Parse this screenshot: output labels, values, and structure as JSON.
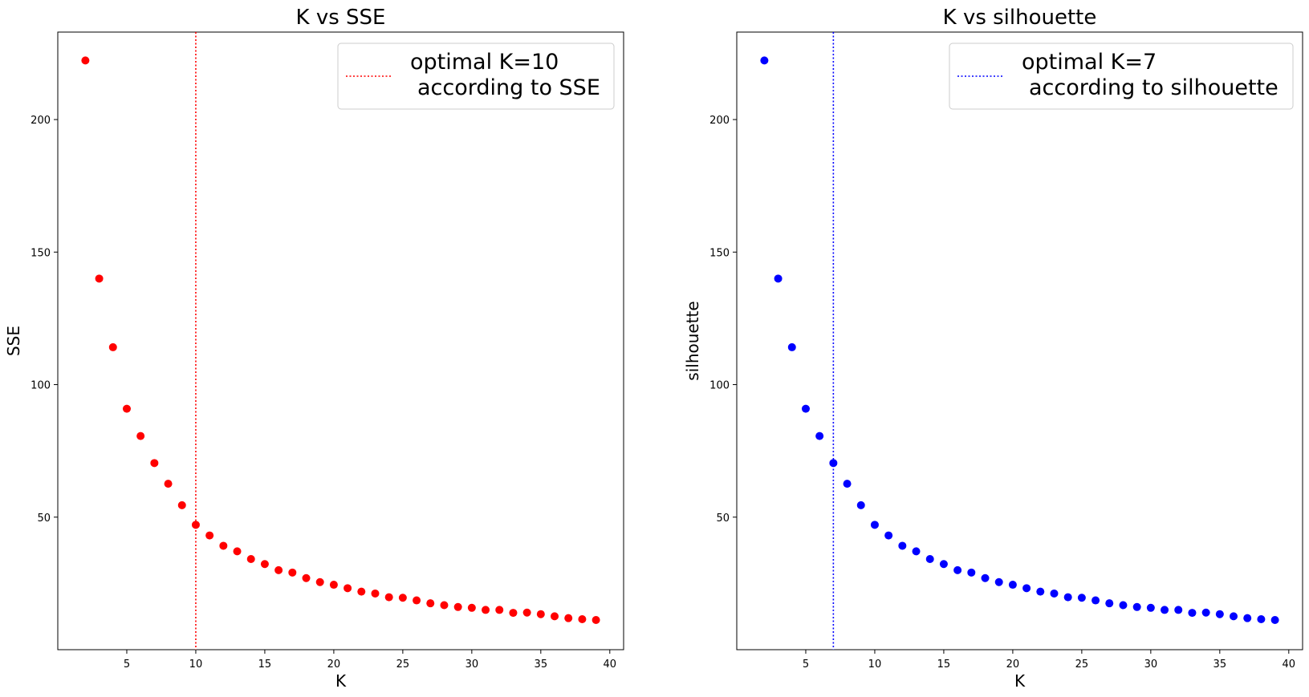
{
  "chart_data": [
    {
      "type": "scatter",
      "title": "K vs SSE",
      "xlabel": "K",
      "ylabel": "SSE",
      "xlim": [
        0,
        41
      ],
      "ylim": [
        0,
        233
      ],
      "xticks": [
        5,
        10,
        15,
        20,
        25,
        30,
        35,
        40
      ],
      "yticks": [
        50,
        100,
        150,
        200
      ],
      "color": "#ff0000",
      "x": [
        2,
        3,
        4,
        5,
        6,
        7,
        8,
        9,
        10,
        11,
        12,
        13,
        14,
        15,
        16,
        17,
        18,
        19,
        20,
        21,
        22,
        23,
        24,
        25,
        26,
        27,
        28,
        29,
        30,
        31,
        32,
        33,
        34,
        35,
        36,
        37,
        38,
        39
      ],
      "y": [
        222.3,
        140.0,
        114.1,
        90.9,
        80.6,
        70.4,
        62.6,
        54.5,
        47.1,
        43.1,
        39.2,
        37.1,
        34.2,
        32.3,
        30.0,
        29.1,
        27.0,
        25.5,
        24.5,
        23.2,
        21.9,
        21.2,
        19.8,
        19.6,
        18.6,
        17.5,
        16.8,
        16.1,
        15.8,
        15.0,
        15.0,
        13.9,
        14.0,
        13.4,
        12.6,
        11.9,
        11.5,
        11.2
      ],
      "vline": {
        "x": 10,
        "style": "dotted"
      },
      "legend": {
        "position": "top-right",
        "line1": "optimal K=10",
        "line2": "according to SSE"
      }
    },
    {
      "type": "scatter",
      "title": "K vs silhouette",
      "xlabel": "K",
      "ylabel": "silhouette",
      "xlim": [
        0,
        41
      ],
      "ylim": [
        0,
        233
      ],
      "xticks": [
        5,
        10,
        15,
        20,
        25,
        30,
        35,
        40
      ],
      "yticks": [
        50,
        100,
        150,
        200
      ],
      "color": "#0000ff",
      "x": [
        2,
        3,
        4,
        5,
        6,
        7,
        8,
        9,
        10,
        11,
        12,
        13,
        14,
        15,
        16,
        17,
        18,
        19,
        20,
        21,
        22,
        23,
        24,
        25,
        26,
        27,
        28,
        29,
        30,
        31,
        32,
        33,
        34,
        35,
        36,
        37,
        38,
        39
      ],
      "y": [
        222.3,
        140.0,
        114.1,
        90.9,
        80.6,
        70.4,
        62.6,
        54.5,
        47.1,
        43.1,
        39.2,
        37.1,
        34.2,
        32.3,
        30.0,
        29.1,
        27.0,
        25.5,
        24.5,
        23.2,
        21.9,
        21.2,
        19.8,
        19.6,
        18.6,
        17.5,
        16.8,
        16.1,
        15.8,
        15.0,
        15.0,
        13.9,
        14.0,
        13.4,
        12.6,
        11.9,
        11.5,
        11.2
      ],
      "vline": {
        "x": 7,
        "style": "dotted"
      },
      "legend": {
        "position": "top-right",
        "line1": "optimal K=7",
        "line2": "according to silhouette"
      }
    }
  ]
}
